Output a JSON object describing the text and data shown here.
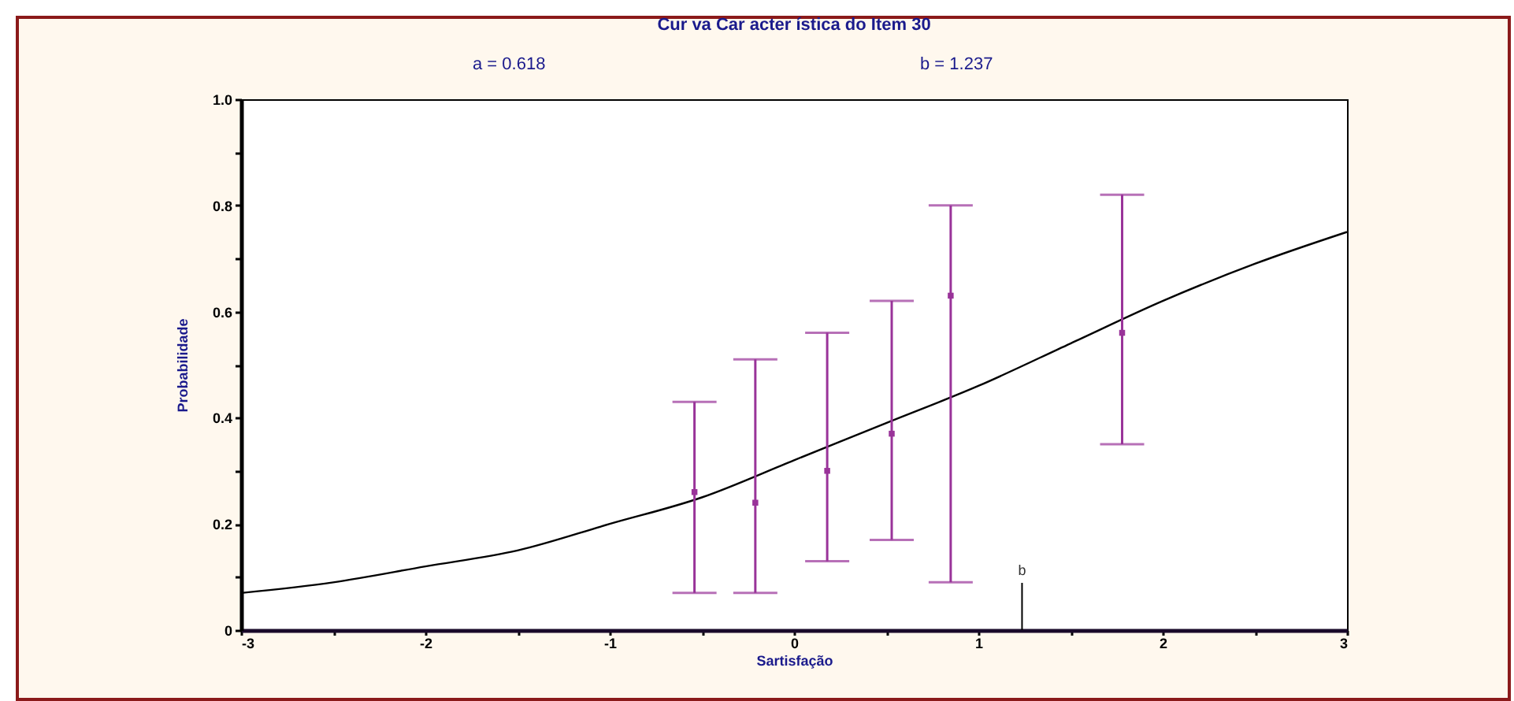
{
  "chart_data": {
    "type": "line",
    "title": "Cur va Car acter ística do Item  30",
    "xlabel": "Sartisfação",
    "ylabel": "Probabilidade",
    "annotations": [
      "a =  0.618",
      "b =  1.237"
    ],
    "ref_lines": [
      {
        "axis": "x",
        "value": 1.237,
        "label": "b"
      }
    ],
    "xlim": [
      -3,
      3
    ],
    "xticks": [
      -3,
      {
        "value": -2.5,
        "label": null
      },
      -2,
      {
        "value": -1.5,
        "label": null
      },
      -1,
      {
        "value": -0.5,
        "label": null
      },
      0,
      {
        "value": 0.5,
        "label": null
      },
      1,
      {
        "value": 1.5,
        "label": null
      },
      2,
      {
        "value": 2.5,
        "label": null
      },
      3
    ],
    "ylim": [
      0,
      1
    ],
    "yticks": [
      {
        "value": 0,
        "label": "0"
      },
      {
        "value": 0.1,
        "label": null
      },
      0.2,
      {
        "value": 0.3,
        "label": null
      },
      0.4,
      {
        "value": 0.5,
        "label": null
      },
      0.6,
      {
        "value": 0.7,
        "label": null
      },
      0.8,
      {
        "value": 0.9,
        "label": null
      },
      {
        "value": 1,
        "label": "1.0"
      }
    ],
    "grid": false,
    "series": [
      {
        "color": "#000000",
        "x": [
          -3,
          -2.5,
          -2,
          -1.5,
          -1,
          -0.5,
          0,
          0.5,
          1,
          1.5,
          2,
          2.5,
          3
        ],
        "values": [
          0.07,
          0.09,
          0.12,
          0.15,
          0.2,
          0.25,
          0.32,
          0.39,
          0.46,
          0.54,
          0.62,
          0.69,
          0.75
        ]
      },
      {
        "type": "scatter",
        "color": "#993399",
        "marker": "square",
        "x": [
          -0.54,
          -0.21,
          0.18,
          0.53,
          0.85,
          1.78
        ],
        "values": [
          0.26,
          0.24,
          0.3,
          0.37,
          0.63,
          0.56
        ],
        "errors": [
          [
            0.07,
            0.43
          ],
          [
            0.07,
            0.51
          ],
          [
            0.13,
            0.56
          ],
          [
            0.17,
            0.62
          ],
          [
            0.09,
            0.8
          ],
          [
            0.35,
            0.82
          ]
        ]
      }
    ]
  }
}
